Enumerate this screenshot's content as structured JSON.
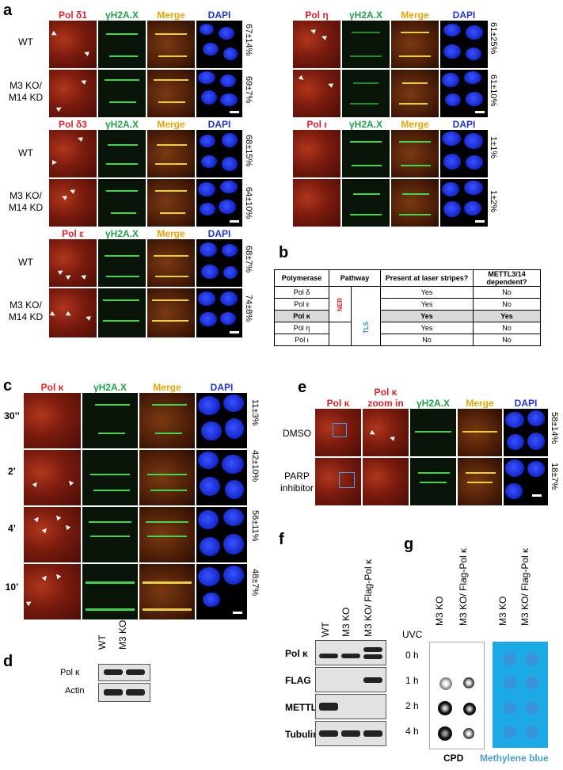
{
  "panel_letters": {
    "a": "a",
    "b": "b",
    "c": "c",
    "d": "d",
    "e": "e",
    "f": "f",
    "g": "g"
  },
  "panel_a": {
    "channels_d1": [
      "Pol δ1",
      "γH2A.X",
      "Merge",
      "DAPI"
    ],
    "channels_d3": [
      "Pol δ3",
      "γH2A.X",
      "Merge",
      "DAPI"
    ],
    "channels_e": [
      "Pol ε",
      "γH2A.X",
      "Merge",
      "DAPI"
    ],
    "channels_eta": [
      "Pol η",
      "γH2A.X",
      "Merge",
      "DAPI"
    ],
    "channels_iota": [
      "Pol ι",
      "γH2A.X",
      "Merge",
      "DAPI"
    ],
    "row_wt": "WT",
    "row_ko_1": "M3 KO/",
    "row_ko_2": "M14 KD",
    "pct": {
      "d1_wt": "67±14%",
      "d1_ko": "69±7%",
      "d3_wt": "68±15%",
      "d3_ko": "64±10%",
      "e_wt": "68±7%",
      "e_ko": "74±8%",
      "eta_wt": "61±25%",
      "eta_ko": "61±10%",
      "iota_wt": "1±1%",
      "iota_ko": "1±2%"
    }
  },
  "panel_b": {
    "headers": [
      "Polymerase",
      "Pathway",
      "Present at laser stripes?",
      "METTL3/14 dependent?"
    ],
    "pathway_ner": "NER",
    "pathway_tls": "TLS",
    "rows": [
      {
        "pol": "Pol δ",
        "present": "Yes",
        "dep": "No"
      },
      {
        "pol": "Pol ε",
        "present": "Yes",
        "dep": "No"
      },
      {
        "pol": "Pol κ",
        "present": "Yes",
        "dep": "Yes"
      },
      {
        "pol": "Pol η",
        "present": "Yes",
        "dep": "No"
      },
      {
        "pol": "Pol ι",
        "present": "No",
        "dep": "No"
      }
    ]
  },
  "panel_c": {
    "channels": [
      "Pol κ",
      "γH2A.X",
      "Merge",
      "DAPI"
    ],
    "times": [
      "30’’",
      "2’",
      "4’",
      "10’"
    ],
    "pct": [
      "11±3%",
      "42±10%",
      "56±11%",
      "48±7%"
    ]
  },
  "panel_d": {
    "cols": [
      "WT",
      "M3 KO"
    ],
    "rows": [
      "Pol κ",
      "Actin"
    ]
  },
  "panel_e": {
    "ch1": "Pol κ",
    "ch2_1": "Pol κ",
    "ch2_2": "zoom in",
    "ch3": "γH2A.X",
    "ch4": "Merge",
    "ch5": "DAPI",
    "row1": "DMSO",
    "row2_1": "PARP",
    "row2_2": "inhibitor",
    "pct": [
      "58±14%",
      "18±7%"
    ]
  },
  "panel_f": {
    "cols": [
      "WT",
      "M3 KO",
      "M3 KO/ Flag-Pol κ"
    ],
    "rows": [
      "Pol κ",
      "FLAG",
      "METTL3",
      "Tubulin"
    ]
  },
  "panel_g": {
    "cols": [
      "M3 KO",
      "M3 KO/ Flag-Pol κ"
    ],
    "uvc": "UVC",
    "times": [
      "0 h",
      "1 h",
      "2 h",
      "4 h"
    ],
    "cpd": "CPD",
    "mb": "Methylene blue",
    "colors": {
      "cpd_bg": "#ffffff",
      "mb_bg": "#1ca9e6",
      "mb_text": "#4a9fd0"
    }
  }
}
